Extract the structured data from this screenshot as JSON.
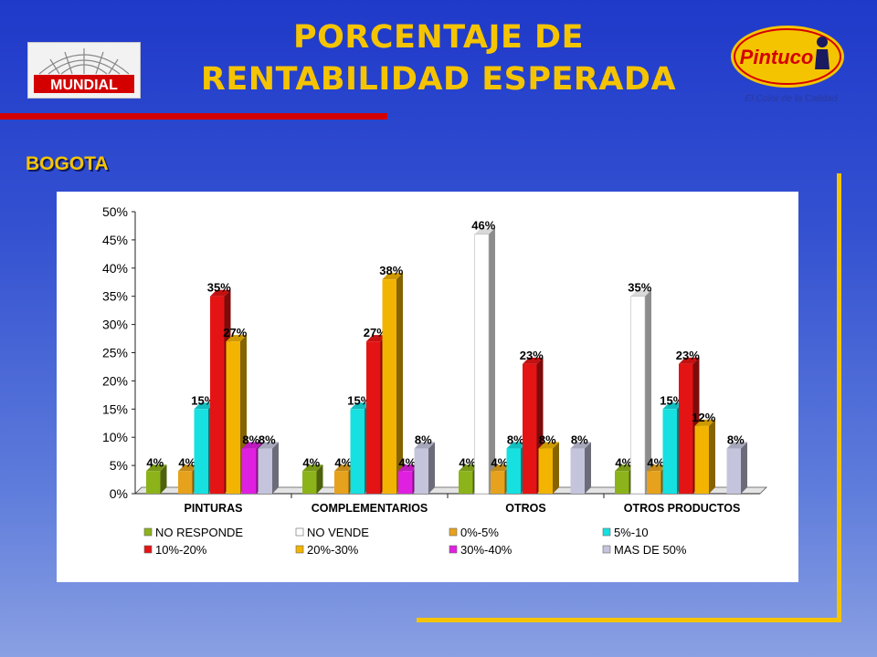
{
  "header": {
    "title_line1": "PORCENTAJE DE",
    "title_line2": "RENTABILIDAD ESPERADA",
    "city": "BOGOTA",
    "logo_left_text": "MUNDIAL",
    "logo_right_text": "Pintuco",
    "logo_right_tagline": "El Color de la Calidad"
  },
  "chart_data": {
    "type": "bar",
    "categories": [
      "PINTURAS",
      "COMPLEMENTARIOS",
      "OTROS",
      "OTROS PRODUCTOS"
    ],
    "ylim": [
      0,
      50
    ],
    "yticks": [
      "0%",
      "5%",
      "10%",
      "15%",
      "20%",
      "25%",
      "30%",
      "35%",
      "40%",
      "45%",
      "50%"
    ],
    "grid": false,
    "legend_position": "bottom",
    "series": [
      {
        "name": "NO RESPONDE",
        "color": "#8db31a",
        "values": [
          4,
          4,
          4,
          4
        ]
      },
      {
        "name": "NO VENDE",
        "color": "#ffffff",
        "values": [
          null,
          null,
          46,
          35
        ]
      },
      {
        "name": "0%-5%",
        "color": "#e6a21c",
        "values": [
          4,
          4,
          4,
          4
        ]
      },
      {
        "name": "5%-10",
        "color": "#16e0e0",
        "values": [
          15,
          15,
          8,
          15
        ]
      },
      {
        "name": "10%-20%",
        "color": "#e41414",
        "values": [
          35,
          27,
          23,
          23
        ]
      },
      {
        "name": "20%-30%",
        "color": "#f2b400",
        "values": [
          27,
          38,
          8,
          12
        ]
      },
      {
        "name": "30%-40%",
        "color": "#e020e0",
        "values": [
          8,
          4,
          null,
          null
        ]
      },
      {
        "name": "MAS DE 50%",
        "color": "#c4c4dc",
        "values": [
          8,
          8,
          8,
          8
        ]
      }
    ],
    "data_labels": [
      [
        "4%",
        null,
        "4%",
        "15%",
        "35%",
        "27%",
        "8%",
        "8%"
      ],
      [
        "4%",
        null,
        "4%",
        "15%",
        "27%",
        "38%",
        "4%",
        "8%"
      ],
      [
        "4%",
        "46%",
        "4%",
        "8%",
        "23%",
        "8%",
        null,
        "8%"
      ],
      [
        "4%",
        "35%",
        "4%",
        "15%",
        "23%",
        "12%",
        null,
        "8%"
      ]
    ]
  }
}
